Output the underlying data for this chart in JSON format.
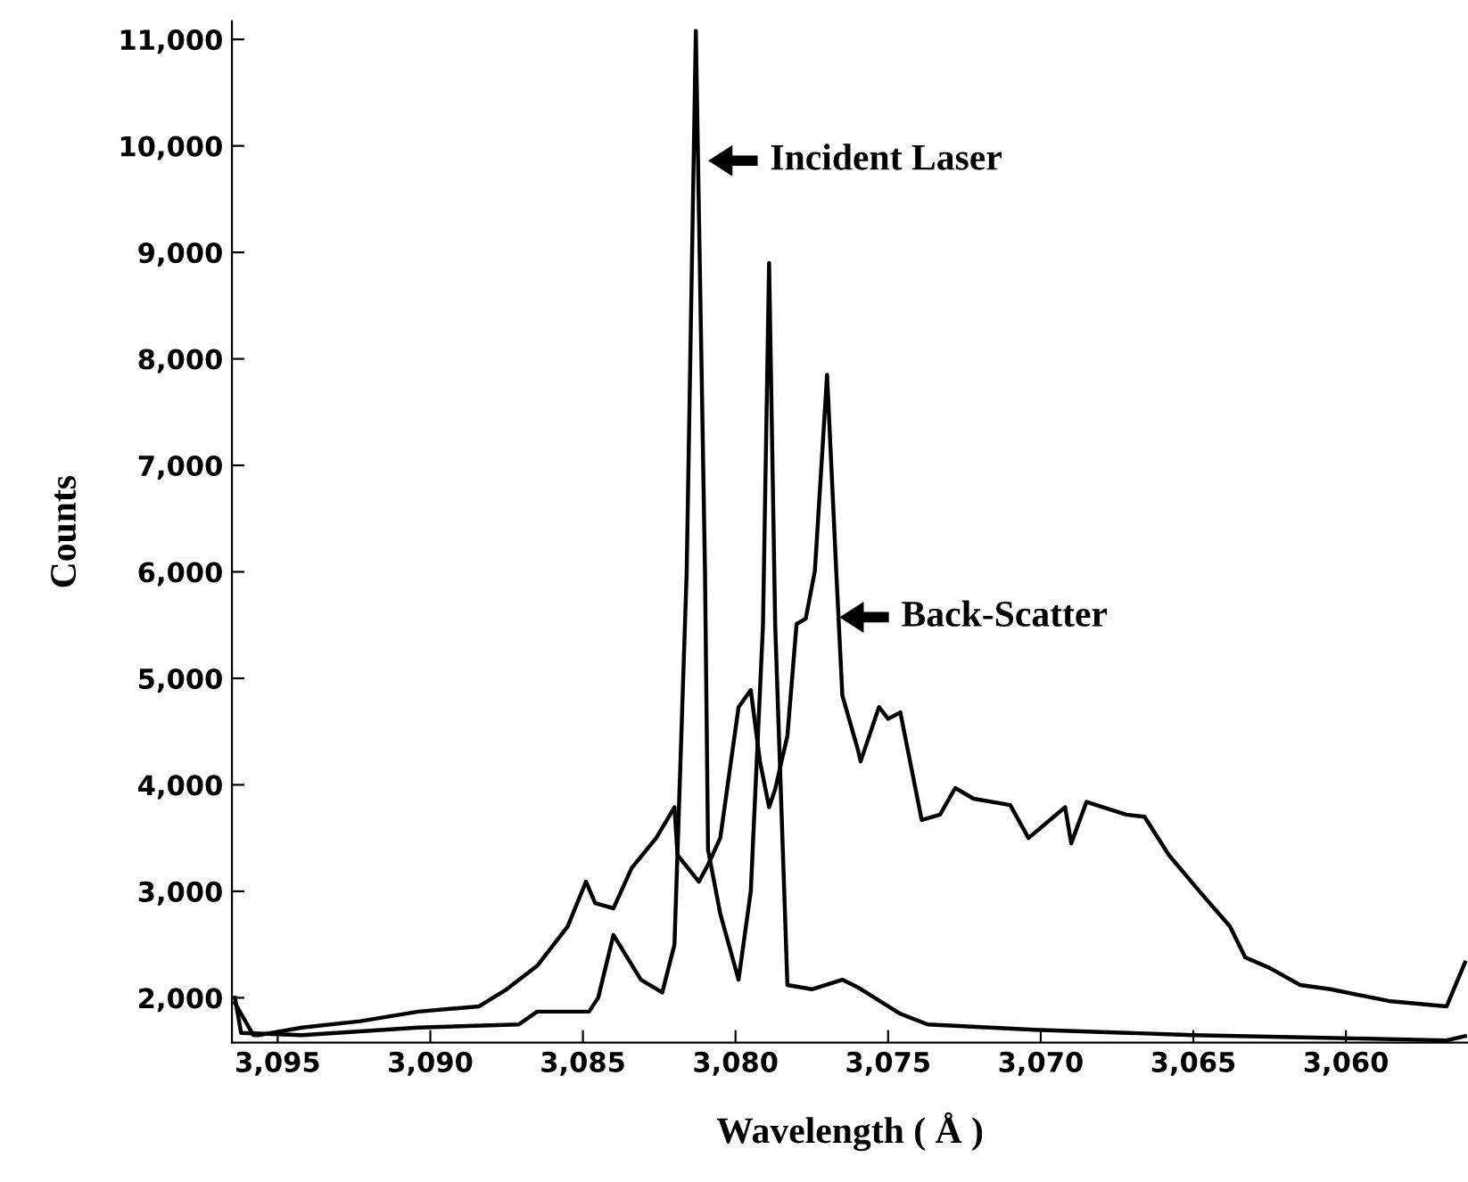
{
  "chart_data": {
    "type": "line",
    "xlabel": "Wavelength ( Å )",
    "ylabel": "Counts",
    "xlim": [
      3096.5,
      3056.0
    ],
    "ylim": [
      1580,
      11170
    ],
    "xticks": [
      {
        "value": 3095,
        "label": "3,095"
      },
      {
        "value": 3090,
        "label": "3,090"
      },
      {
        "value": 3085,
        "label": "3,085"
      },
      {
        "value": 3080,
        "label": "3,080"
      },
      {
        "value": 3075,
        "label": "3,075"
      },
      {
        "value": 3070,
        "label": "3,070"
      },
      {
        "value": 3065,
        "label": "3,065"
      },
      {
        "value": 3060,
        "label": "3,060"
      }
    ],
    "yticks": [
      {
        "value": 2000,
        "label": "2,000"
      },
      {
        "value": 3000,
        "label": "3,000"
      },
      {
        "value": 4000,
        "label": "4,000"
      },
      {
        "value": 5000,
        "label": "5,000"
      },
      {
        "value": 6000,
        "label": "6,000"
      },
      {
        "value": 7000,
        "label": "7,000"
      },
      {
        "value": 8000,
        "label": "8,000"
      },
      {
        "value": 9000,
        "label": "9,000"
      },
      {
        "value": 10000,
        "label": "10,000"
      },
      {
        "value": 11000,
        "label": "11,000"
      }
    ],
    "grid": false,
    "marker": "none",
    "line_style": "solid",
    "annotations": [
      "Incident Laser",
      "Back-Scatter"
    ],
    "series": [
      {
        "color": "#000000",
        "x": [
          3096.4,
          3096.2,
          3094.2,
          3090.4,
          3087.1,
          3086.5,
          3084.8,
          3084.5,
          3084.0,
          3083.1,
          3082.4,
          3082.0,
          3081.6,
          3081.3,
          3081.0,
          3080.9,
          3080.5,
          3079.9,
          3079.5,
          3079.1,
          3078.9,
          3078.7,
          3078.3,
          3077.5,
          3076.5,
          3076.0,
          3074.6,
          3073.7,
          3070.2,
          3065.0,
          3060.0,
          3056.7,
          3056.1
        ],
        "values": [
          2000,
          1670,
          1650,
          1720,
          1750,
          1870,
          1870,
          2000,
          2590,
          2170,
          2050,
          2500,
          6000,
          11080,
          6000,
          3390,
          2790,
          2170,
          3000,
          5500,
          8900,
          5500,
          2120,
          2080,
          2170,
          2100,
          1850,
          1750,
          1700,
          1650,
          1620,
          1600,
          1640
        ]
      },
      {
        "color": "#000000",
        "x": [
          3096.4,
          3095.8,
          3095.6,
          3094.2,
          3092.3,
          3090.4,
          3088.4,
          3087.5,
          3086.5,
          3085.5,
          3084.9,
          3084.6,
          3084.0,
          3083.4,
          3082.6,
          3082.0,
          3081.9,
          3081.2,
          3080.9,
          3080.5,
          3079.9,
          3079.5,
          3079.2,
          3078.9,
          3078.7,
          3078.3,
          3078.0,
          3077.7,
          3077.4,
          3077.0,
          3076.7,
          3076.5,
          3076.0,
          3075.9,
          3075.3,
          3075.0,
          3074.6,
          3073.9,
          3073.3,
          3072.8,
          3072.2,
          3071.0,
          3070.4,
          3069.2,
          3069.0,
          3068.5,
          3067.2,
          3066.6,
          3065.8,
          3064.8,
          3063.8,
          3063.3,
          3062.5,
          3061.5,
          3060.5,
          3058.6,
          3056.7,
          3056.1
        ],
        "values": [
          1950,
          1650,
          1650,
          1720,
          1780,
          1870,
          1920,
          2080,
          2300,
          2670,
          3090,
          2890,
          2840,
          3220,
          3500,
          3790,
          3340,
          3090,
          3250,
          3500,
          4730,
          4890,
          4220,
          3790,
          3960,
          4460,
          5510,
          5560,
          6010,
          7850,
          6010,
          4840,
          4340,
          4220,
          4730,
          4620,
          4680,
          3670,
          3720,
          3970,
          3870,
          3810,
          3500,
          3790,
          3450,
          3840,
          3720,
          3700,
          3340,
          3000,
          2670,
          2380,
          2280,
          2120,
          2080,
          1970,
          1920,
          2330
        ]
      }
    ]
  }
}
